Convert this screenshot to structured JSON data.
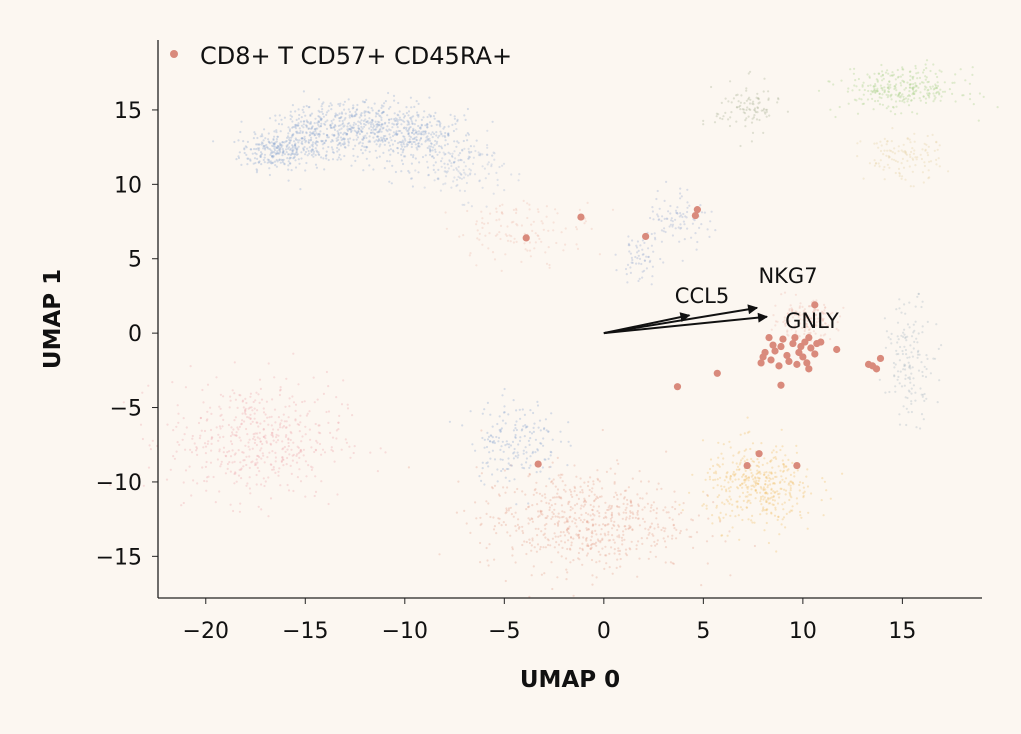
{
  "chart_data": {
    "type": "scatter",
    "xlabel": "UMAP 0",
    "ylabel": "UMAP 1",
    "xlim": [
      -22.4,
      19
    ],
    "ylim": [
      -17.8,
      19.7
    ],
    "xticks": [
      -20,
      -15,
      -10,
      -5,
      0,
      5,
      10,
      15
    ],
    "yticks": [
      -15,
      -10,
      -5,
      0,
      5,
      10,
      15
    ],
    "grid": false,
    "legend": {
      "placement": "top-left",
      "entries": [
        {
          "name": "CD8+ T CD57+ CD45RA+",
          "color": "#d98a7c"
        }
      ]
    },
    "highlight_color": "#d98a7c",
    "highlighted_points": [
      [
        -3.9,
        6.4
      ],
      [
        -1.15,
        7.8
      ],
      [
        2.1,
        6.5
      ],
      [
        4.7,
        8.3
      ],
      [
        4.6,
        7.9
      ],
      [
        3.7,
        -3.6
      ],
      [
        5.7,
        -2.7
      ],
      [
        8.9,
        -3.5
      ],
      [
        -3.3,
        -8.8
      ],
      [
        7.2,
        -8.9
      ],
      [
        7.8,
        -8.1
      ],
      [
        9.7,
        -8.9
      ],
      [
        13.3,
        -2.1
      ],
      [
        13.5,
        -2.2
      ],
      [
        13.7,
        -2.4
      ],
      [
        13.9,
        -1.7
      ],
      [
        11.7,
        -1.1
      ],
      [
        10.2,
        -2.0
      ],
      [
        10.3,
        -2.4
      ],
      [
        10.6,
        1.9
      ],
      [
        8.3,
        -0.3
      ],
      [
        8.6,
        -1.2
      ],
      [
        8.9,
        -0.9
      ],
      [
        9.2,
        -1.5
      ],
      [
        9.5,
        -0.7
      ],
      [
        9.8,
        -1.3
      ],
      [
        10.1,
        -0.6
      ],
      [
        10.4,
        -1.0
      ],
      [
        10.7,
        -0.7
      ],
      [
        10.9,
        -0.6
      ],
      [
        8.0,
        -1.6
      ],
      [
        8.4,
        -1.8
      ],
      [
        8.8,
        -2.2
      ],
      [
        9.3,
        -1.9
      ],
      [
        9.7,
        -2.1
      ],
      [
        10.0,
        -1.6
      ],
      [
        8.1,
        -1.3
      ],
      [
        9.0,
        -0.4
      ],
      [
        9.6,
        -0.3
      ],
      [
        10.3,
        -0.3
      ],
      [
        7.9,
        -2.0
      ],
      [
        8.5,
        -0.8
      ],
      [
        9.9,
        -0.9
      ],
      [
        10.6,
        -1.4
      ]
    ],
    "background_clusters": [
      {
        "center": [
          -16.5,
          12.2
        ],
        "spread": [
          0.9,
          0.6
        ],
        "n": 220,
        "color": "#8fa9d0"
      },
      {
        "center": [
          -14.5,
          13.3
        ],
        "spread": [
          1.3,
          0.9
        ],
        "n": 320,
        "color": "#8fa9d0"
      },
      {
        "center": [
          -11.8,
          13.8
        ],
        "spread": [
          1.5,
          1.0
        ],
        "n": 360,
        "color": "#8fa9d0"
      },
      {
        "center": [
          -9.0,
          13.0
        ],
        "spread": [
          1.3,
          1.0
        ],
        "n": 260,
        "color": "#8fa9d0"
      },
      {
        "center": [
          -7.0,
          11.0
        ],
        "spread": [
          1.0,
          1.0
        ],
        "n": 120,
        "color": "#a9bad6"
      },
      {
        "center": [
          -17.5,
          -7.2
        ],
        "spread": [
          2.2,
          2.0
        ],
        "n": 500,
        "color": "#eeaaae"
      },
      {
        "center": [
          -1.0,
          -12.6
        ],
        "spread": [
          2.6,
          1.7
        ],
        "n": 650,
        "color": "#e5a48e"
      },
      {
        "center": [
          -4.5,
          -7.2
        ],
        "spread": [
          1.1,
          1.4
        ],
        "n": 180,
        "color": "#8fa9d0"
      },
      {
        "center": [
          7.8,
          -10.3
        ],
        "spread": [
          1.4,
          1.4
        ],
        "n": 420,
        "color": "#f0bf6a"
      },
      {
        "center": [
          15.0,
          16.4
        ],
        "spread": [
          1.5,
          0.7
        ],
        "n": 300,
        "color": "#a9d18a"
      },
      {
        "center": [
          7.2,
          15.1
        ],
        "spread": [
          0.8,
          0.9
        ],
        "n": 100,
        "color": "#aab394"
      },
      {
        "center": [
          15.0,
          11.8
        ],
        "spread": [
          1.0,
          0.8
        ],
        "n": 120,
        "color": "#e6d0a2"
      },
      {
        "center": [
          15.4,
          -1.8
        ],
        "spread": [
          0.6,
          2.0
        ],
        "n": 150,
        "color": "#a9b8c4"
      },
      {
        "center": [
          -4.0,
          6.9
        ],
        "spread": [
          1.8,
          1.0
        ],
        "n": 120,
        "color": "#efbcae"
      },
      {
        "center": [
          3.8,
          7.8
        ],
        "spread": [
          0.8,
          1.0
        ],
        "n": 90,
        "color": "#9aabd0"
      },
      {
        "center": [
          1.8,
          5.0
        ],
        "spread": [
          0.5,
          0.9
        ],
        "n": 60,
        "color": "#9aabd0"
      },
      {
        "center": [
          10.1,
          0.9
        ],
        "spread": [
          0.8,
          0.6
        ],
        "n": 180,
        "color": "#eebaae"
      }
    ],
    "arrows": [
      {
        "label": "CCL5",
        "dx": 4.3,
        "dy": 1.2
      },
      {
        "label": "NKG7",
        "dx": 7.7,
        "dy": 1.7
      },
      {
        "label": "GNLY",
        "dx": 8.2,
        "dy": 1.1
      }
    ]
  }
}
